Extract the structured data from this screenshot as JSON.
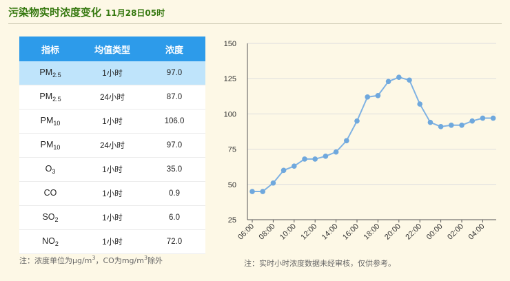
{
  "header": {
    "title": "污染物实时浓度变化",
    "time": "11月28日05时"
  },
  "table": {
    "headers": [
      "指标",
      "均值类型",
      "浓度"
    ],
    "rows": [
      {
        "pollutant": "PM",
        "sub": "2.5",
        "avg_type": "1小时",
        "value": "97.0",
        "highlight": true
      },
      {
        "pollutant": "PM",
        "sub": "2.5",
        "avg_type": "24小时",
        "value": "87.0"
      },
      {
        "pollutant": "PM",
        "sub": "10",
        "avg_type": "1小时",
        "value": "106.0"
      },
      {
        "pollutant": "PM",
        "sub": "10",
        "avg_type": "24小时",
        "value": "97.0"
      },
      {
        "pollutant": "O",
        "sub": "3",
        "avg_type": "1小时",
        "value": "35.0"
      },
      {
        "pollutant": "CO",
        "sub": "",
        "avg_type": "1小时",
        "value": "0.9"
      },
      {
        "pollutant": "SO",
        "sub": "2",
        "avg_type": "1小时",
        "value": "6.0"
      },
      {
        "pollutant": "NO",
        "sub": "2",
        "avg_type": "1小时",
        "value": "72.0"
      }
    ]
  },
  "notes": {
    "left_a": "注：浓度单位为μg/m",
    "left_sup1": "3",
    "left_b": "，CO为mg/m",
    "left_sup2": "3",
    "left_c": "除外",
    "right": "注：实时小时浓度数据未经审核，仅供参考。"
  },
  "colors": {
    "title": "#35780f",
    "header_bg": "#2d9bea",
    "highlight_row": "#bfe4fb",
    "line": "#7fb2e3",
    "point": "#6fa8dd",
    "background": "#fdf8e6"
  },
  "chart_data": {
    "type": "line",
    "title": "",
    "xlabel": "",
    "ylabel": "",
    "ylim": [
      25,
      150
    ],
    "yticks": [
      "25",
      "50",
      "75",
      "100",
      "125",
      "150"
    ],
    "x": [
      "06:00",
      "07:00",
      "08:00",
      "09:00",
      "10:00",
      "11:00",
      "12:00",
      "13:00",
      "14:00",
      "15:00",
      "16:00",
      "17:00",
      "18:00",
      "19:00",
      "20:00",
      "21:00",
      "22:00",
      "23:00",
      "00:00",
      "01:00",
      "02:00",
      "03:00",
      "04:00",
      "05:00"
    ],
    "xtick_labels": [
      "06:00",
      "08:00",
      "10:00",
      "12:00",
      "14:00",
      "16:00",
      "18:00",
      "20:00",
      "22:00",
      "00:00",
      "02:00",
      "04:00"
    ],
    "series": [
      {
        "values": [
          45,
          45,
          51,
          60,
          63,
          68,
          68,
          70,
          73,
          81,
          95,
          112,
          113,
          123,
          126,
          124,
          107,
          94,
          91,
          92,
          92,
          95,
          97,
          97
        ]
      }
    ],
    "grid": "horizontal"
  }
}
